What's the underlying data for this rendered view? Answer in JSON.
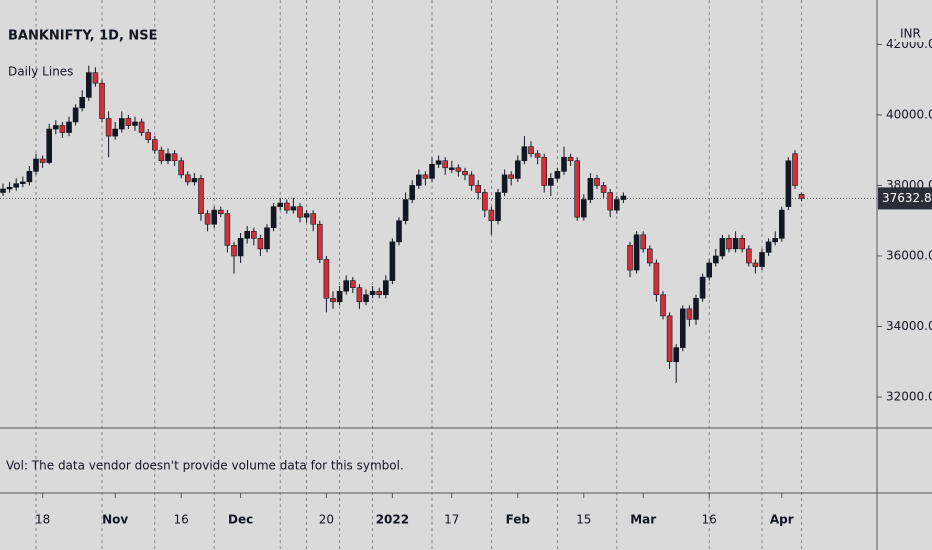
{
  "chart_data": {
    "type": "candlestick",
    "title": "BANKNIFTY, 1D, NSE",
    "indicator": "Daily Lines",
    "volume_note": "Vol: The data vendor doesn't provide volume data for this symbol.",
    "currency": "INR",
    "up_color": "#131722",
    "down_color": "#d1303a",
    "ohlc": [
      [
        37800,
        38050,
        37700,
        37900
      ],
      [
        37900,
        38100,
        37800,
        37950
      ],
      [
        37950,
        38200,
        37850,
        38050
      ],
      [
        38050,
        38250,
        37950,
        38100
      ],
      [
        38100,
        38550,
        38000,
        38400
      ],
      [
        38400,
        38900,
        38300,
        38750
      ],
      [
        38750,
        38850,
        38500,
        38650
      ],
      [
        38650,
        39750,
        38600,
        39600
      ],
      [
        39600,
        39850,
        39450,
        39700
      ],
      [
        39700,
        39800,
        39350,
        39500
      ],
      [
        39500,
        39950,
        39400,
        39800
      ],
      [
        39800,
        40300,
        39700,
        40200
      ],
      [
        40200,
        40700,
        40100,
        40500
      ],
      [
        40500,
        41400,
        40400,
        41200
      ],
      [
        41200,
        41350,
        40800,
        40900
      ],
      [
        40900,
        41000,
        39800,
        39900
      ],
      [
        39900,
        40100,
        38800,
        39400
      ],
      [
        39400,
        39800,
        39300,
        39600
      ],
      [
        39600,
        40100,
        39500,
        39900
      ],
      [
        39900,
        40000,
        39600,
        39700
      ],
      [
        39700,
        39950,
        39550,
        39800
      ],
      [
        39800,
        39900,
        39400,
        39500
      ],
      [
        39500,
        39600,
        39200,
        39300
      ],
      [
        39300,
        39400,
        38900,
        39000
      ],
      [
        39000,
        39100,
        38600,
        38700
      ],
      [
        38700,
        39050,
        38600,
        38900
      ],
      [
        38900,
        39000,
        38550,
        38700
      ],
      [
        38700,
        38800,
        38200,
        38300
      ],
      [
        38300,
        38400,
        38000,
        38100
      ],
      [
        38100,
        38350,
        38000,
        38200
      ],
      [
        38200,
        38300,
        37000,
        37200
      ],
      [
        37200,
        37300,
        36700,
        36900
      ],
      [
        36900,
        37400,
        36800,
        37300
      ],
      [
        37300,
        37400,
        37100,
        37200
      ],
      [
        37200,
        37300,
        36100,
        36300
      ],
      [
        36300,
        36400,
        35500,
        36000
      ],
      [
        36000,
        36650,
        35800,
        36500
      ],
      [
        36500,
        36850,
        36350,
        36700
      ],
      [
        36700,
        36800,
        36300,
        36500
      ],
      [
        36500,
        36600,
        36000,
        36200
      ],
      [
        36200,
        36900,
        36100,
        36800
      ],
      [
        36800,
        37500,
        36700,
        37400
      ],
      [
        37400,
        37650,
        37300,
        37500
      ],
      [
        37500,
        37600,
        37200,
        37300
      ],
      [
        37300,
        37650,
        37200,
        37400
      ],
      [
        37400,
        37500,
        36950,
        37100
      ],
      [
        37100,
        37300,
        36950,
        37200
      ],
      [
        37200,
        37300,
        36700,
        36900
      ],
      [
        36900,
        37000,
        35800,
        35900
      ],
      [
        35900,
        36000,
        34400,
        34800
      ],
      [
        34800,
        35000,
        34500,
        34700
      ],
      [
        34700,
        35150,
        34600,
        35000
      ],
      [
        35000,
        35450,
        34900,
        35300
      ],
      [
        35300,
        35400,
        34950,
        35100
      ],
      [
        35100,
        35200,
        34500,
        34700
      ],
      [
        34700,
        35050,
        34600,
        34900
      ],
      [
        34900,
        35150,
        34800,
        35000
      ],
      [
        35000,
        35100,
        34800,
        34900
      ],
      [
        34900,
        35450,
        34800,
        35300
      ],
      [
        35300,
        36500,
        35200,
        36400
      ],
      [
        36400,
        37100,
        36300,
        37000
      ],
      [
        37000,
        37800,
        36900,
        37600
      ],
      [
        37600,
        38150,
        37500,
        38000
      ],
      [
        38000,
        38450,
        37900,
        38300
      ],
      [
        38300,
        38400,
        38000,
        38200
      ],
      [
        38200,
        38800,
        38100,
        38600
      ],
      [
        38600,
        38850,
        38500,
        38700
      ],
      [
        38700,
        38800,
        38300,
        38500
      ],
      [
        38450,
        38700,
        38350,
        38500
      ],
      [
        38500,
        38600,
        38250,
        38400
      ],
      [
        38400,
        38500,
        38150,
        38300
      ],
      [
        38300,
        38400,
        37850,
        38000
      ],
      [
        38000,
        38150,
        37600,
        37800
      ],
      [
        37800,
        37900,
        37100,
        37300
      ],
      [
        37300,
        37400,
        36600,
        37000
      ],
      [
        37000,
        37900,
        36900,
        37800
      ],
      [
        37800,
        38450,
        37700,
        38300
      ],
      [
        38300,
        38400,
        38000,
        38200
      ],
      [
        38200,
        38850,
        38100,
        38700
      ],
      [
        38700,
        39400,
        38600,
        39100
      ],
      [
        39100,
        39250,
        38800,
        38900
      ],
      [
        38900,
        39000,
        38600,
        38800
      ],
      [
        38800,
        38900,
        37800,
        38000
      ],
      [
        38000,
        38350,
        37700,
        38200
      ],
      [
        38200,
        38500,
        38100,
        38400
      ],
      [
        38400,
        39100,
        38300,
        38800
      ],
      [
        38800,
        38900,
        38550,
        38700
      ],
      [
        38700,
        38800,
        37000,
        37100
      ],
      [
        37100,
        37750,
        37000,
        37600
      ],
      [
        37600,
        38350,
        37500,
        38200
      ],
      [
        38200,
        38300,
        37900,
        38000
      ],
      [
        38000,
        38100,
        37650,
        37800
      ],
      [
        37800,
        37900,
        37100,
        37300
      ],
      [
        37300,
        37700,
        37200,
        37600
      ],
      [
        37600,
        37800,
        37500,
        37700
      ],
      [
        36300,
        36400,
        35400,
        35600
      ],
      [
        35600,
        36700,
        35500,
        36600
      ],
      [
        36600,
        36700,
        36100,
        36200
      ],
      [
        36200,
        36300,
        35700,
        35800
      ],
      [
        35800,
        35900,
        34700,
        34900
      ],
      [
        34900,
        35000,
        34200,
        34300
      ],
      [
        34300,
        34400,
        32800,
        33000
      ],
      [
        33000,
        33500,
        32400,
        33400
      ],
      [
        33400,
        34600,
        33300,
        34500
      ],
      [
        34500,
        34600,
        34000,
        34200
      ],
      [
        34200,
        34900,
        34050,
        34800
      ],
      [
        34800,
        35500,
        34700,
        35400
      ],
      [
        35400,
        35900,
        35300,
        35800
      ],
      [
        35800,
        36200,
        35700,
        36000
      ],
      [
        36000,
        36600,
        35900,
        36500
      ],
      [
        36500,
        36600,
        36100,
        36200
      ],
      [
        36200,
        36700,
        36100,
        36500
      ],
      [
        36500,
        36600,
        36100,
        36200
      ],
      [
        36200,
        36300,
        35700,
        35800
      ],
      [
        35800,
        35900,
        35500,
        35700
      ],
      [
        35700,
        36200,
        35600,
        36100
      ],
      [
        36100,
        36500,
        36000,
        36400
      ],
      [
        36400,
        36700,
        36300,
        36500
      ],
      [
        36500,
        37400,
        36400,
        37300
      ],
      [
        37400,
        38800,
        37300,
        38700
      ],
      [
        38900,
        39000,
        37900,
        38000
      ],
      [
        37750,
        37800,
        37550,
        37632.8
      ]
    ],
    "daily_lines": [
      5,
      15,
      23,
      32,
      42,
      46,
      51,
      56,
      65,
      74,
      84,
      93,
      107,
      115,
      121
    ],
    "xticks": [
      {
        "value": 6,
        "label": "18"
      },
      {
        "value": 17,
        "label": "Nov"
      },
      {
        "value": 27,
        "label": "16"
      },
      {
        "value": 36,
        "label": "Dec"
      },
      {
        "value": 49,
        "label": "20"
      },
      {
        "value": 59,
        "label": "2022"
      },
      {
        "value": 68,
        "label": "17"
      },
      {
        "value": 78,
        "label": "Feb"
      },
      {
        "value": 88,
        "label": "15"
      },
      {
        "value": 97,
        "label": "Mar"
      },
      {
        "value": 107,
        "label": "16"
      },
      {
        "value": 118,
        "label": "Apr"
      }
    ],
    "ylim": [
      31120,
      43260
    ],
    "yticks": [
      {
        "value": 32000,
        "label": "32000.00"
      },
      {
        "value": 34000,
        "label": "34000.00"
      },
      {
        "value": 36000,
        "label": "36000.00"
      },
      {
        "value": 38000,
        "label": "38000.00"
      },
      {
        "value": 40000,
        "label": "40000.00"
      },
      {
        "value": 42000,
        "label": "42000.00"
      }
    ],
    "last_price": {
      "value": 37632.8,
      "label": "37632.80"
    }
  }
}
